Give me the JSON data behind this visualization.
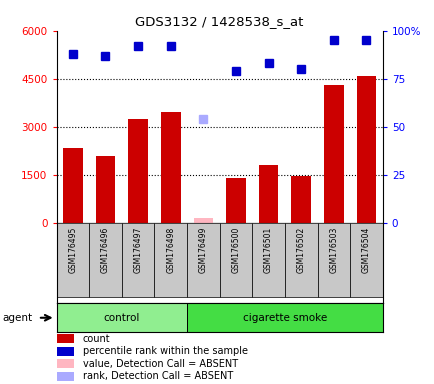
{
  "title": "GDS3132 / 1428538_s_at",
  "samples": [
    "GSM176495",
    "GSM176496",
    "GSM176497",
    "GSM176498",
    "GSM176499",
    "GSM176500",
    "GSM176501",
    "GSM176502",
    "GSM176503",
    "GSM176504"
  ],
  "counts": [
    2350,
    2100,
    3250,
    3450,
    150,
    1400,
    1800,
    1450,
    4300,
    4600
  ],
  "percentile_ranks": [
    88,
    87,
    92,
    92,
    53,
    79,
    83,
    80,
    95,
    95
  ],
  "absent_value_idx": 4,
  "absent_value_count": 150,
  "absent_rank_val": 3250,
  "absent_rank_idx": 4,
  "groups": [
    {
      "label": "control",
      "start": 0,
      "end": 3,
      "color": "#90EE90"
    },
    {
      "label": "cigarette smoke",
      "start": 4,
      "end": 9,
      "color": "#44DD44"
    }
  ],
  "bar_color": "#CC0000",
  "absent_bar_color": "#FFB6C1",
  "percentile_color": "#0000CC",
  "absent_rank_color": "#AAAAFF",
  "ylim_left": [
    0,
    6000
  ],
  "ylim_right": [
    0,
    100
  ],
  "yticks_left": [
    0,
    1500,
    3000,
    4500,
    6000
  ],
  "ytick_labels_left": [
    "0",
    "1500",
    "3000",
    "4500",
    "6000"
  ],
  "yticks_right": [
    0,
    25,
    50,
    75,
    100
  ],
  "ytick_labels_right": [
    "0",
    "25",
    "50",
    "75",
    "100%"
  ],
  "hlines": [
    1500,
    3000,
    4500
  ],
  "agent_label": "agent",
  "legend_items": [
    {
      "color": "#CC0000",
      "label": "count"
    },
    {
      "color": "#0000CC",
      "label": "percentile rank within the sample"
    },
    {
      "color": "#FFB6C1",
      "label": "value, Detection Call = ABSENT"
    },
    {
      "color": "#AAAAFF",
      "label": "rank, Detection Call = ABSENT"
    }
  ]
}
